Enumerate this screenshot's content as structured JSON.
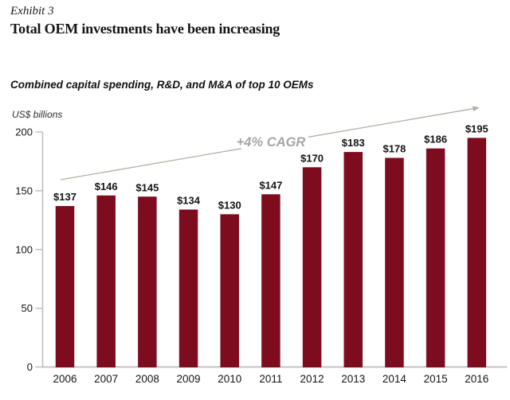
{
  "page": {
    "exhibit_label": "Exhibit 3",
    "title": "Total OEM investments have been increasing"
  },
  "chart": {
    "subtitle": "Combined capital spending, R&D, and M&A of top 10 OEMs",
    "unit_label": "US$ billions",
    "annotation": "+4% CAGR"
  },
  "chart_data": {
    "type": "bar",
    "title": "Combined capital spending, R&D, and M&A of top 10 OEMs",
    "ylabel": "US$ billions",
    "xlabel": "",
    "categories": [
      "2006",
      "2007",
      "2008",
      "2009",
      "2010",
      "2011",
      "2012",
      "2013",
      "2014",
      "2015",
      "2016"
    ],
    "values": [
      137,
      146,
      145,
      134,
      130,
      147,
      170,
      183,
      178,
      186,
      195
    ],
    "value_labels": [
      "$137",
      "$146",
      "$145",
      "$134",
      "$130",
      "$147",
      "$170",
      "$183",
      "$178",
      "$186",
      "$195"
    ],
    "ylim": [
      0,
      200
    ],
    "yticks": [
      0,
      50,
      100,
      150,
      200
    ],
    "grid": false,
    "legend": "none",
    "annotation": {
      "text": "+4% CAGR",
      "type": "trend-arrow-up"
    },
    "colors": {
      "bar": "#7d0c1e",
      "axis": "#bdbdbd",
      "trend_arrow": "#b5afa8",
      "annotation_text": "#a6a6a6",
      "label": "#141414"
    }
  }
}
